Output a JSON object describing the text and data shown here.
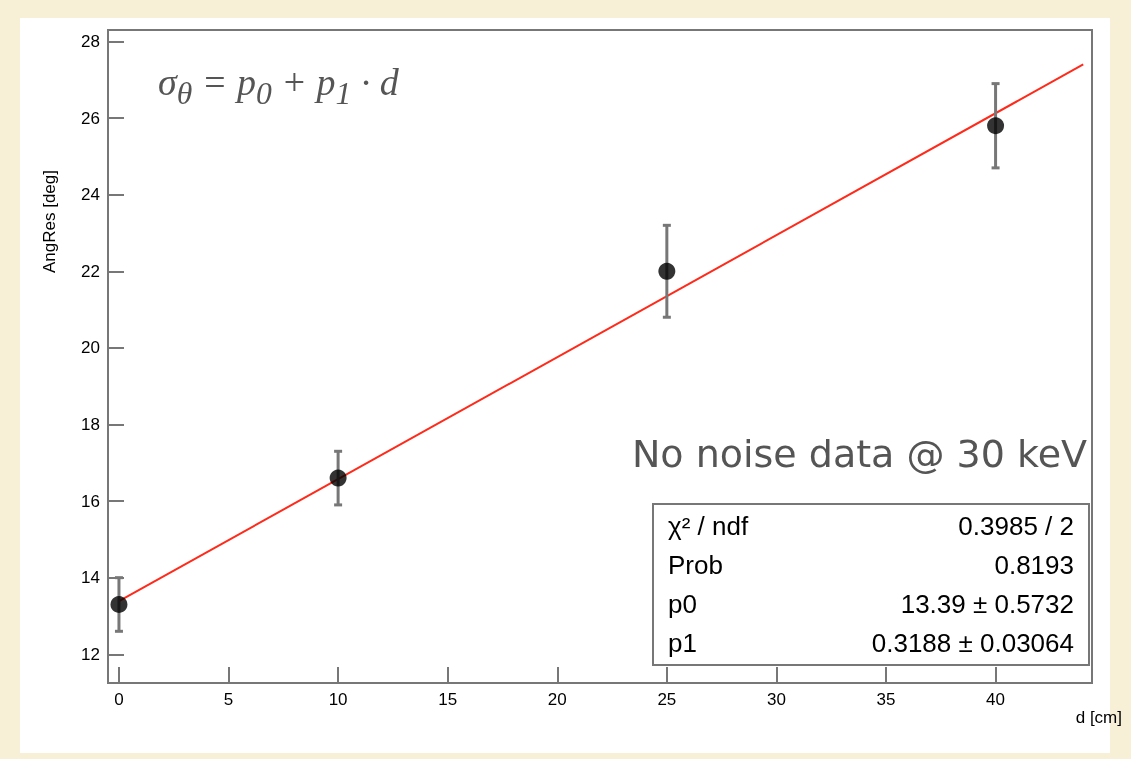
{
  "chart_data": {
    "type": "scatter",
    "xlabel": "d [cm]",
    "ylabel": "AngRes [deg]",
    "xlim": [
      -0.5,
      44.4
    ],
    "xticks": [
      0,
      5,
      10,
      15,
      20,
      25,
      30,
      35,
      40
    ],
    "ylim": [
      11.25,
      28.3
    ],
    "yticks": [
      12,
      14,
      16,
      18,
      20,
      22,
      24,
      26,
      28
    ],
    "grid": false,
    "series": [
      {
        "color": "#000000",
        "marker": "circle",
        "x": [
          0,
          10,
          25,
          40
        ],
        "values": [
          13.3,
          16.6,
          22.0,
          25.8
        ],
        "errors": [
          0.7,
          0.7,
          1.2,
          1.1
        ]
      },
      {
        "type": "line",
        "color": "#ff2a1a",
        "marker": "none",
        "line_style": "solid",
        "x": [
          0,
          44
        ],
        "values": [
          13.39,
          27.4
        ]
      }
    ],
    "annotations": [
      "σ$_{θ}$ = p$_{0}$ + p$_{1}$ · d",
      "No noise data @ 30 keV",
      "χ² / ndf",
      "0.3985 / 2",
      "Prob",
      "0.8193",
      "p0",
      "13.39 ± 0.5732",
      "p1",
      "0.3188 ± 0.03064"
    ]
  }
}
